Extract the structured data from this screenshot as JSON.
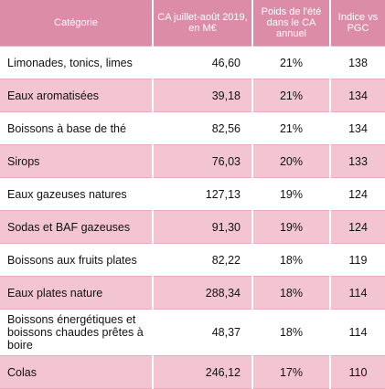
{
  "table": {
    "header": [
      "Catégorie",
      "CA juillet-août 2019, en M€",
      "Poids de l'été dans le CA annuel",
      "Indice vs PGC"
    ],
    "rows": [
      [
        "Limonades, tonics, limes",
        "46,60",
        "21%",
        "138"
      ],
      [
        "Eaux aromatisées",
        "39,18",
        "21%",
        "134"
      ],
      [
        "Boissons à base de thé",
        "82,56",
        "21%",
        "134"
      ],
      [
        "Sirops",
        "76,03",
        "20%",
        "133"
      ],
      [
        "Eaux gazeuses natures",
        "127,13",
        "19%",
        "124"
      ],
      [
        "Sodas et BAF gazeuses",
        "91,30",
        "19%",
        "124"
      ],
      [
        "Boissons aux fruits plates",
        "82,22",
        "18%",
        "119"
      ],
      [
        "Eaux plates nature",
        "288,34",
        "18%",
        "114"
      ],
      [
        "Boissons énergétiques et boissons chaudes prêtes à boire",
        "48,37",
        "18%",
        "114"
      ],
      [
        "Colas",
        "246,12",
        "17%",
        "110"
      ]
    ]
  }
}
